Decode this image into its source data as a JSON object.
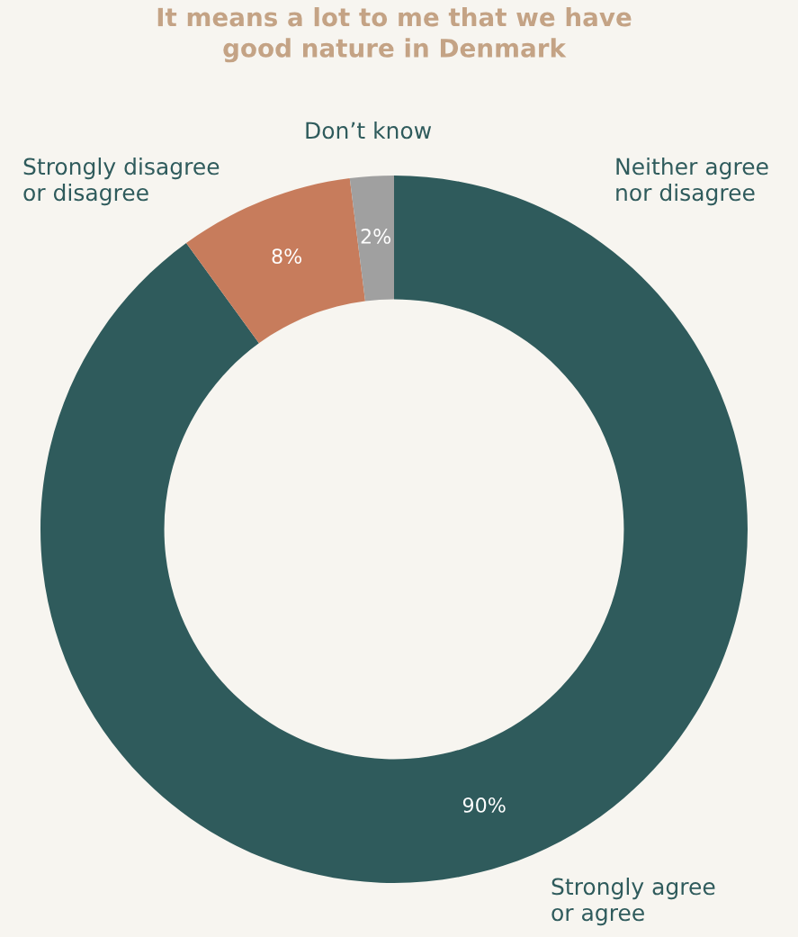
{
  "chart_data": {
    "type": "donut",
    "title": "It means a lot to me that we have\ngood nature in Denmark",
    "categories": [
      "Neither agree\nnor disagree",
      "Strongly agree\nor agree",
      "Strongly disagree\nor disagree",
      "Don’t know"
    ],
    "values": [
      0,
      90,
      8,
      2
    ],
    "colors": [
      "#a0a0a0",
      "#2f5b5c",
      "#c77c5c",
      "#a0a0a0"
    ],
    "value_labels": [
      null,
      "90%",
      "8%",
      "2%"
    ]
  }
}
